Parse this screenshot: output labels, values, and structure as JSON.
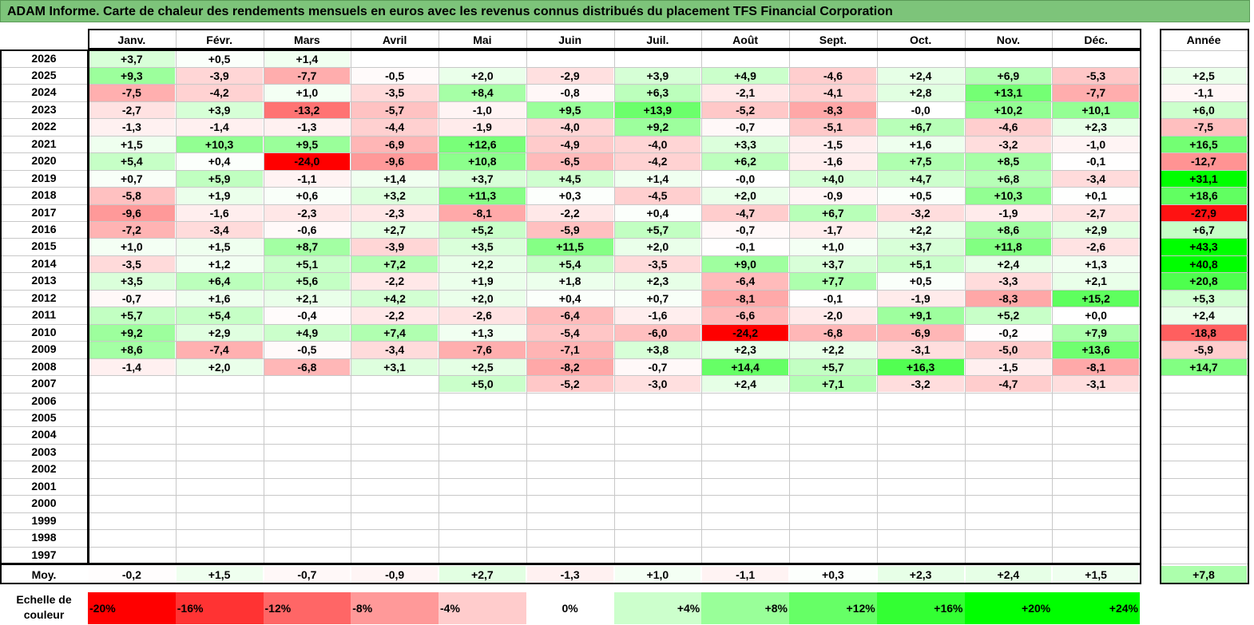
{
  "title": "ADAM Informe. Carte de chaleur des rendements mensuels en euros avec les revenus connus distribués du placement TFS Financial Corporation",
  "chart_data": {
    "type": "heatmap",
    "title": "ADAM Informe. Carte de chaleur des rendements mensuels en euros avec les revenus connus distribués du placement TFS Financial Corporation",
    "columns": [
      "Janv.",
      "Févr.",
      "Mars",
      "Avril",
      "Mai",
      "Juin",
      "Juil.",
      "Août",
      "Sept.",
      "Oct.",
      "Nov.",
      "Déc."
    ],
    "year_column": "Année",
    "average_label": "Moy.",
    "rows": [
      {
        "year": "2026",
        "values": [
          "+3,7",
          "+0,5",
          "+1,4",
          "",
          "",
          "",
          "",
          "",
          "",
          "",
          "",
          ""
        ],
        "annual": ""
      },
      {
        "year": "2025",
        "values": [
          "+9,3",
          "-3,9",
          "-7,7",
          "-0,5",
          "+2,0",
          "-2,9",
          "+3,9",
          "+4,9",
          "-4,6",
          "+2,4",
          "+6,9",
          "-5,3"
        ],
        "annual": "+2,5"
      },
      {
        "year": "2024",
        "values": [
          "-7,5",
          "-4,2",
          "+1,0",
          "-3,5",
          "+8,4",
          "-0,8",
          "+6,3",
          "-2,1",
          "-4,1",
          "+2,8",
          "+13,1",
          "-7,7"
        ],
        "annual": "-1,1"
      },
      {
        "year": "2023",
        "values": [
          "-2,7",
          "+3,9",
          "-13,2",
          "-5,7",
          "-1,0",
          "+9,5",
          "+13,9",
          "-5,2",
          "-8,3",
          "-0,0",
          "+10,2",
          "+10,1"
        ],
        "annual": "+6,0"
      },
      {
        "year": "2022",
        "values": [
          "-1,3",
          "-1,4",
          "-1,3",
          "-4,4",
          "-1,9",
          "-4,0",
          "+9,2",
          "-0,7",
          "-5,1",
          "+6,7",
          "-4,6",
          "+2,3"
        ],
        "annual": "-7,5"
      },
      {
        "year": "2021",
        "values": [
          "+1,5",
          "+10,3",
          "+9,5",
          "-6,9",
          "+12,6",
          "-4,9",
          "-4,0",
          "+3,3",
          "-1,5",
          "+1,6",
          "-3,2",
          "-1,0"
        ],
        "annual": "+16,5"
      },
      {
        "year": "2020",
        "values": [
          "+5,4",
          "+0,4",
          "-24,0",
          "-9,6",
          "+10,8",
          "-6,5",
          "-4,2",
          "+6,2",
          "-1,6",
          "+7,5",
          "+8,5",
          "-0,1"
        ],
        "annual": "-12,7"
      },
      {
        "year": "2019",
        "values": [
          "+0,7",
          "+5,9",
          "-1,1",
          "+1,4",
          "+3,7",
          "+4,5",
          "+1,4",
          "-0,0",
          "+4,0",
          "+4,7",
          "+6,8",
          "-3,4"
        ],
        "annual": "+31,1"
      },
      {
        "year": "2018",
        "values": [
          "-5,8",
          "+1,9",
          "+0,6",
          "+3,2",
          "+11,3",
          "+0,3",
          "-4,5",
          "+2,0",
          "-0,9",
          "+0,5",
          "+10,3",
          "+0,1"
        ],
        "annual": "+18,6"
      },
      {
        "year": "2017",
        "values": [
          "-9,6",
          "-1,6",
          "-2,3",
          "-2,3",
          "-8,1",
          "-2,2",
          "+0,4",
          "-4,7",
          "+6,7",
          "-3,2",
          "-1,9",
          "-2,7"
        ],
        "annual": "-27,9"
      },
      {
        "year": "2016",
        "values": [
          "-7,2",
          "-3,4",
          "-0,6",
          "+2,7",
          "+5,2",
          "-5,9",
          "+5,7",
          "-0,7",
          "-1,7",
          "+2,2",
          "+8,6",
          "+2,9"
        ],
        "annual": "+6,7"
      },
      {
        "year": "2015",
        "values": [
          "+1,0",
          "+1,5",
          "+8,7",
          "-3,9",
          "+3,5",
          "+11,5",
          "+2,0",
          "-0,1",
          "+1,0",
          "+3,7",
          "+11,8",
          "-2,6"
        ],
        "annual": "+43,3"
      },
      {
        "year": "2014",
        "values": [
          "-3,5",
          "+1,2",
          "+5,1",
          "+7,2",
          "+2,2",
          "+5,4",
          "-3,5",
          "+9,0",
          "+3,7",
          "+5,1",
          "+2,4",
          "+1,3"
        ],
        "annual": "+40,8"
      },
      {
        "year": "2013",
        "values": [
          "+3,5",
          "+6,4",
          "+5,6",
          "-2,2",
          "+1,9",
          "+1,8",
          "+2,3",
          "-6,4",
          "+7,7",
          "+0,5",
          "-3,3",
          "+2,1"
        ],
        "annual": "+20,8"
      },
      {
        "year": "2012",
        "values": [
          "-0,7",
          "+1,6",
          "+2,1",
          "+4,2",
          "+2,0",
          "+0,4",
          "+0,7",
          "-8,1",
          "-0,1",
          "-1,9",
          "-8,3",
          "+15,2"
        ],
        "annual": "+5,3"
      },
      {
        "year": "2011",
        "values": [
          "+5,7",
          "+5,4",
          "-0,4",
          "-2,2",
          "-2,6",
          "-6,4",
          "-1,6",
          "-6,6",
          "-2,0",
          "+9,1",
          "+5,2",
          "+0,0"
        ],
        "annual": "+2,4"
      },
      {
        "year": "2010",
        "values": [
          "+9,2",
          "+2,9",
          "+4,9",
          "+7,4",
          "+1,3",
          "-5,4",
          "-6,0",
          "-24,2",
          "-6,8",
          "-6,9",
          "-0,2",
          "+7,9"
        ],
        "annual": "-18,8"
      },
      {
        "year": "2009",
        "values": [
          "+8,6",
          "-7,4",
          "-0,5",
          "-3,4",
          "-7,6",
          "-7,1",
          "+3,8",
          "+2,3",
          "+2,2",
          "-3,1",
          "-5,0",
          "+13,6"
        ],
        "annual": "-5,9"
      },
      {
        "year": "2008",
        "values": [
          "-1,4",
          "+2,0",
          "-6,8",
          "+3,1",
          "+2,5",
          "-8,2",
          "-0,7",
          "+14,4",
          "+5,7",
          "+16,3",
          "-1,5",
          "-8,1"
        ],
        "annual": "+14,7"
      },
      {
        "year": "2007",
        "values": [
          "",
          "",
          "",
          "",
          "+5,0",
          "-5,2",
          "-3,0",
          "+2,4",
          "+7,1",
          "-3,2",
          "-4,7",
          "-3,1"
        ],
        "annual": ""
      },
      {
        "year": "2006",
        "values": [
          "",
          "",
          "",
          "",
          "",
          "",
          "",
          "",
          "",
          "",
          "",
          ""
        ],
        "annual": ""
      },
      {
        "year": "2005",
        "values": [
          "",
          "",
          "",
          "",
          "",
          "",
          "",
          "",
          "",
          "",
          "",
          ""
        ],
        "annual": ""
      },
      {
        "year": "2004",
        "values": [
          "",
          "",
          "",
          "",
          "",
          "",
          "",
          "",
          "",
          "",
          "",
          ""
        ],
        "annual": ""
      },
      {
        "year": "2003",
        "values": [
          "",
          "",
          "",
          "",
          "",
          "",
          "",
          "",
          "",
          "",
          "",
          ""
        ],
        "annual": ""
      },
      {
        "year": "2002",
        "values": [
          "",
          "",
          "",
          "",
          "",
          "",
          "",
          "",
          "",
          "",
          "",
          ""
        ],
        "annual": ""
      },
      {
        "year": "2001",
        "values": [
          "",
          "",
          "",
          "",
          "",
          "",
          "",
          "",
          "",
          "",
          "",
          ""
        ],
        "annual": ""
      },
      {
        "year": "2000",
        "values": [
          "",
          "",
          "",
          "",
          "",
          "",
          "",
          "",
          "",
          "",
          "",
          ""
        ],
        "annual": ""
      },
      {
        "year": "1999",
        "values": [
          "",
          "",
          "",
          "",
          "",
          "",
          "",
          "",
          "",
          "",
          "",
          ""
        ],
        "annual": ""
      },
      {
        "year": "1998",
        "values": [
          "",
          "",
          "",
          "",
          "",
          "",
          "",
          "",
          "",
          "",
          "",
          ""
        ],
        "annual": ""
      },
      {
        "year": "1997",
        "values": [
          "",
          "",
          "",
          "",
          "",
          "",
          "",
          "",
          "",
          "",
          "",
          ""
        ],
        "annual": ""
      }
    ],
    "averages": [
      "-0,2",
      "+1,5",
      "-0,7",
      "-0,9",
      "+2,7",
      "-1,3",
      "+1,0",
      "-1,1",
      "+0,3",
      "+2,3",
      "+2,4",
      "+1,5"
    ],
    "average_annual": "+7,8",
    "color_scale": {
      "label": "Echelle de couleur",
      "stops": [
        {
          "label": "-20%",
          "value": -20,
          "color": "#ff0000"
        },
        {
          "label": "-16%",
          "value": -16,
          "color": "#ff3333"
        },
        {
          "label": "-12%",
          "value": -12,
          "color": "#ff6666"
        },
        {
          "label": "-8%",
          "value": -8,
          "color": "#ff9999"
        },
        {
          "label": "-4%",
          "value": -4,
          "color": "#ffcccc"
        },
        {
          "label": "0%",
          "value": 0,
          "color": "#ffffff"
        },
        {
          "label": "+4%",
          "value": 4,
          "color": "#ccffcc"
        },
        {
          "label": "+8%",
          "value": 8,
          "color": "#99ff99"
        },
        {
          "label": "+12%",
          "value": 12,
          "color": "#66ff66"
        },
        {
          "label": "+16%",
          "value": 16,
          "color": "#33ff33"
        },
        {
          "label": "+20%",
          "value": 20,
          "color": "#00ff00"
        },
        {
          "label": "+24%",
          "value": 24,
          "color": "#00ff00"
        }
      ]
    }
  },
  "colors": {
    "title_bg": "#7dc47a",
    "grid_line": "#c8c8c8",
    "frame": "#000000"
  }
}
